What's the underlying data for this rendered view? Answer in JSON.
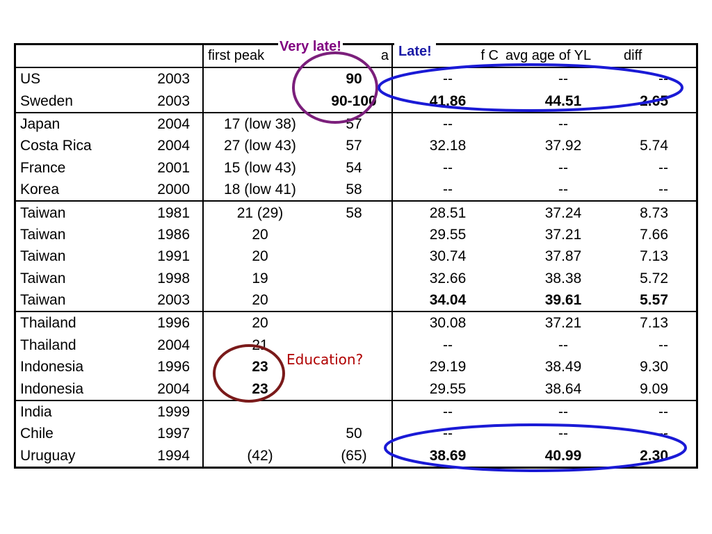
{
  "headers": {
    "country": "",
    "year": "",
    "first_peak": "first peak",
    "partial_a": "a",
    "avg_age_c_partial": "f C",
    "avg_age_yl": "avg age of YL",
    "diff": "diff"
  },
  "rows": [
    {
      "country": "US",
      "year": "2003",
      "first_peak": "",
      "second": "90",
      "aoc": "--",
      "ayl": "--",
      "diff": "--"
    },
    {
      "country": "Sweden",
      "year": "2003",
      "first_peak": "",
      "second": "90-100",
      "aoc": "41.86",
      "ayl": "44.51",
      "diff": "2.65"
    },
    {
      "country": "Japan",
      "year": "2004",
      "first_peak": "17 (low 38)",
      "second": "57",
      "aoc": "--",
      "ayl": "--",
      "diff": ""
    },
    {
      "country": "Costa Rica",
      "year": "2004",
      "first_peak": "27 (low 43)",
      "second": "57",
      "aoc": "32.18",
      "ayl": "37.92",
      "diff": "5.74"
    },
    {
      "country": "France",
      "year": "2001",
      "first_peak": "15 (low 43)",
      "second": "54",
      "aoc": "--",
      "ayl": "--",
      "diff": "--"
    },
    {
      "country": "Korea",
      "year": "2000",
      "first_peak": "18 (low 41)",
      "second": "58",
      "aoc": "--",
      "ayl": "--",
      "diff": "--"
    },
    {
      "country": "Taiwan",
      "year": "1981",
      "first_peak": "21 (29)",
      "second": "58",
      "aoc": "28.51",
      "ayl": "37.24",
      "diff": "8.73"
    },
    {
      "country": "Taiwan",
      "year": "1986",
      "first_peak": "20",
      "second": "",
      "aoc": "29.55",
      "ayl": "37.21",
      "diff": "7.66"
    },
    {
      "country": "Taiwan",
      "year": "1991",
      "first_peak": "20",
      "second": "",
      "aoc": "30.74",
      "ayl": "37.87",
      "diff": "7.13"
    },
    {
      "country": "Taiwan",
      "year": "1998",
      "first_peak": "19",
      "second": "",
      "aoc": "32.66",
      "ayl": "38.38",
      "diff": "5.72"
    },
    {
      "country": "Taiwan",
      "year": "2003",
      "first_peak": "20",
      "second": "",
      "aoc": "34.04",
      "ayl": "39.61",
      "diff": "5.57"
    },
    {
      "country": "Thailand",
      "year": "1996",
      "first_peak": "20",
      "second": "",
      "aoc": "30.08",
      "ayl": "37.21",
      "diff": "7.13"
    },
    {
      "country": "Thailand",
      "year": "2004",
      "first_peak": "21",
      "second": "",
      "aoc": "--",
      "ayl": "--",
      "diff": "--"
    },
    {
      "country": "Indonesia",
      "year": "1996",
      "first_peak": "23",
      "second": "",
      "aoc": "29.19",
      "ayl": "38.49",
      "diff": "9.30"
    },
    {
      "country": "Indonesia",
      "year": "2004",
      "first_peak": "23",
      "second": "",
      "aoc": "29.55",
      "ayl": "38.64",
      "diff": "9.09"
    },
    {
      "country": "India",
      "year": "1999",
      "first_peak": "",
      "second": "",
      "aoc": "--",
      "ayl": "--",
      "diff": "--"
    },
    {
      "country": "Chile",
      "year": "1997",
      "first_peak": "",
      "second": "50",
      "aoc": "--",
      "ayl": "--",
      "diff": "--"
    },
    {
      "country": "Uruguay",
      "year": "1994",
      "first_peak": "(42)",
      "second": "(65)",
      "aoc": "38.69",
      "ayl": "40.99",
      "diff": "2.30"
    }
  ],
  "annotations": {
    "very_late": "Very late!",
    "late": "Late!",
    "education": "Education?"
  },
  "colors": {
    "very_late": "#800080",
    "late": "#1a1aa6",
    "education": "#b00000",
    "circle_purple": "#7b1f7b",
    "circle_blue": "#1a1ad6",
    "circle_red": "#7a1a1a"
  }
}
